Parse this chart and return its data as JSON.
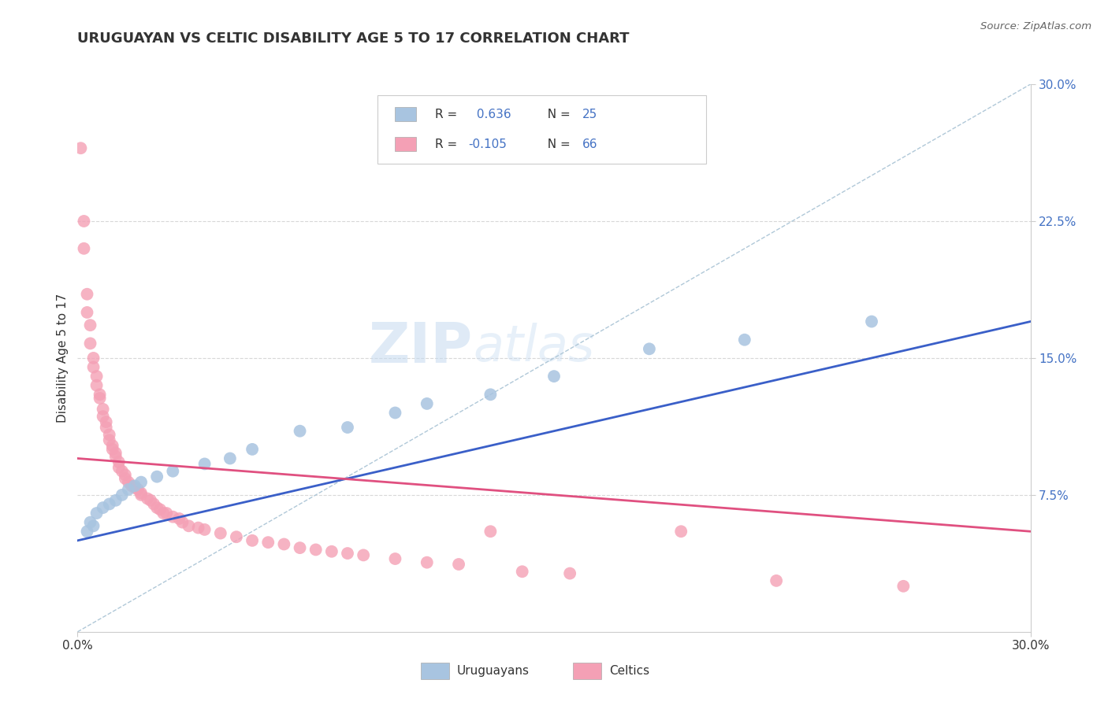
{
  "title": "URUGUAYAN VS CELTIC DISABILITY AGE 5 TO 17 CORRELATION CHART",
  "source": "Source: ZipAtlas.com",
  "ylabel": "Disability Age 5 to 17",
  "xlim": [
    0.0,
    0.3
  ],
  "ylim": [
    0.0,
    0.3
  ],
  "watermark_zip": "ZIP",
  "watermark_atlas": "atlas",
  "uruguayan_color": "#a8c4e0",
  "celtic_color": "#f4a0b5",
  "uruguayan_line_color": "#3a5fc8",
  "celtic_line_color": "#e05080",
  "diag_line_color": "#b0c8d8",
  "grid_color": "#d8d8d8",
  "background_color": "#ffffff",
  "title_color": "#333333",
  "axis_label_color": "#333333",
  "tick_color_right": "#4472c4",
  "source_color": "#666666",
  "uruguayan_points": [
    [
      0.003,
      0.055
    ],
    [
      0.004,
      0.06
    ],
    [
      0.005,
      0.058
    ],
    [
      0.006,
      0.065
    ],
    [
      0.008,
      0.068
    ],
    [
      0.01,
      0.07
    ],
    [
      0.012,
      0.072
    ],
    [
      0.014,
      0.075
    ],
    [
      0.016,
      0.078
    ],
    [
      0.018,
      0.08
    ],
    [
      0.02,
      0.082
    ],
    [
      0.025,
      0.085
    ],
    [
      0.03,
      0.088
    ],
    [
      0.04,
      0.092
    ],
    [
      0.048,
      0.095
    ],
    [
      0.055,
      0.1
    ],
    [
      0.07,
      0.11
    ],
    [
      0.085,
      0.112
    ],
    [
      0.1,
      0.12
    ],
    [
      0.11,
      0.125
    ],
    [
      0.13,
      0.13
    ],
    [
      0.15,
      0.14
    ],
    [
      0.18,
      0.155
    ],
    [
      0.21,
      0.16
    ],
    [
      0.25,
      0.17
    ]
  ],
  "celtic_points": [
    [
      0.001,
      0.265
    ],
    [
      0.002,
      0.225
    ],
    [
      0.002,
      0.21
    ],
    [
      0.003,
      0.185
    ],
    [
      0.003,
      0.175
    ],
    [
      0.004,
      0.168
    ],
    [
      0.004,
      0.158
    ],
    [
      0.005,
      0.15
    ],
    [
      0.005,
      0.145
    ],
    [
      0.006,
      0.14
    ],
    [
      0.006,
      0.135
    ],
    [
      0.007,
      0.13
    ],
    [
      0.007,
      0.128
    ],
    [
      0.008,
      0.122
    ],
    [
      0.008,
      0.118
    ],
    [
      0.009,
      0.115
    ],
    [
      0.009,
      0.112
    ],
    [
      0.01,
      0.108
    ],
    [
      0.01,
      0.105
    ],
    [
      0.011,
      0.102
    ],
    [
      0.011,
      0.1
    ],
    [
      0.012,
      0.098
    ],
    [
      0.012,
      0.096
    ],
    [
      0.013,
      0.093
    ],
    [
      0.013,
      0.09
    ],
    [
      0.014,
      0.088
    ],
    [
      0.015,
      0.086
    ],
    [
      0.015,
      0.084
    ],
    [
      0.016,
      0.082
    ],
    [
      0.017,
      0.08
    ],
    [
      0.018,
      0.079
    ],
    [
      0.019,
      0.078
    ],
    [
      0.02,
      0.076
    ],
    [
      0.02,
      0.075
    ],
    [
      0.022,
      0.073
    ],
    [
      0.023,
      0.072
    ],
    [
      0.024,
      0.07
    ],
    [
      0.025,
      0.068
    ],
    [
      0.026,
      0.067
    ],
    [
      0.027,
      0.065
    ],
    [
      0.028,
      0.065
    ],
    [
      0.03,
      0.063
    ],
    [
      0.032,
      0.062
    ],
    [
      0.033,
      0.06
    ],
    [
      0.035,
      0.058
    ],
    [
      0.038,
      0.057
    ],
    [
      0.04,
      0.056
    ],
    [
      0.045,
      0.054
    ],
    [
      0.05,
      0.052
    ],
    [
      0.055,
      0.05
    ],
    [
      0.06,
      0.049
    ],
    [
      0.065,
      0.048
    ],
    [
      0.07,
      0.046
    ],
    [
      0.075,
      0.045
    ],
    [
      0.08,
      0.044
    ],
    [
      0.085,
      0.043
    ],
    [
      0.09,
      0.042
    ],
    [
      0.1,
      0.04
    ],
    [
      0.11,
      0.038
    ],
    [
      0.12,
      0.037
    ],
    [
      0.13,
      0.055
    ],
    [
      0.14,
      0.033
    ],
    [
      0.155,
      0.032
    ],
    [
      0.19,
      0.055
    ],
    [
      0.22,
      0.028
    ],
    [
      0.26,
      0.025
    ]
  ]
}
